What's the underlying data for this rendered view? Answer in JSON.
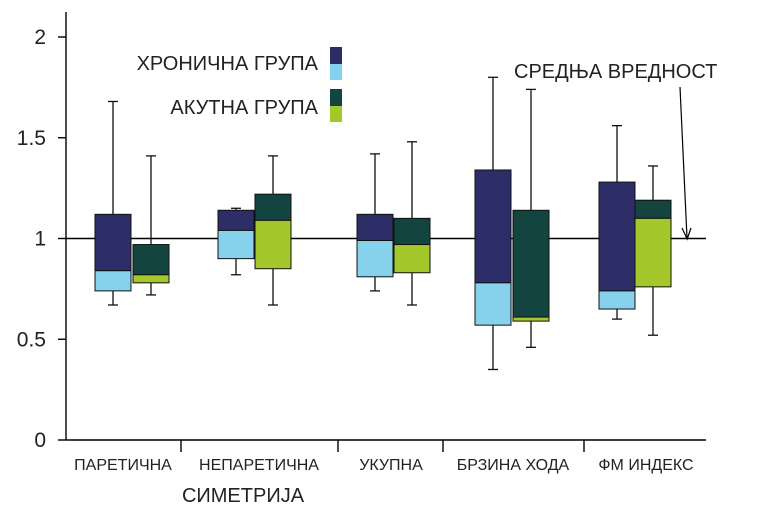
{
  "chart_data": {
    "type": "box",
    "xlabel": "СИМЕТРИЈА",
    "ylabel": "",
    "ylim": [
      0,
      2
    ],
    "yticks": [
      "0",
      "0.5",
      "1",
      "1.5",
      "2"
    ],
    "grid": false,
    "legend_position": "top-left",
    "categories": [
      "ПАРЕТИЧНА",
      "НЕПАРЕТИЧНА",
      "УКУПНА",
      "БРЗИНА ХОДА",
      "ФМ ИНДЕКС"
    ],
    "reference_line": {
      "value": 1,
      "label": "СРЕДЊА ВРЕДНОСТ"
    },
    "series": [
      {
        "name": "ХРОНИЧНА ГРУПА",
        "colors": {
          "upper": "#2d2d68",
          "lower": "#86d2ec"
        },
        "boxes": [
          {
            "min": 0.67,
            "q1": 0.74,
            "median": 0.84,
            "q3": 1.12,
            "max": 1.68
          },
          {
            "min": 0.82,
            "q1": 0.9,
            "median": 1.04,
            "q3": 1.14,
            "max": 1.15
          },
          {
            "min": 0.74,
            "q1": 0.81,
            "median": 0.99,
            "q3": 1.12,
            "max": 1.42
          },
          {
            "min": 0.35,
            "q1": 0.57,
            "median": 0.78,
            "q3": 1.34,
            "max": 1.8
          },
          {
            "min": 0.6,
            "q1": 0.65,
            "median": 0.74,
            "q3": 1.28,
            "max": 1.56
          }
        ]
      },
      {
        "name": "АКУТНА ГРУПА",
        "colors": {
          "upper": "#134440",
          "lower": "#a4c72b"
        },
        "boxes": [
          {
            "min": 0.72,
            "q1": 0.78,
            "median": 0.82,
            "q3": 0.97,
            "max": 1.41
          },
          {
            "min": 0.67,
            "q1": 0.85,
            "median": 1.09,
            "q3": 1.22,
            "max": 1.41
          },
          {
            "min": 0.67,
            "q1": 0.83,
            "median": 0.97,
            "q3": 1.1,
            "max": 1.48
          },
          {
            "min": 0.46,
            "q1": 0.59,
            "median": 0.61,
            "q3": 1.14,
            "max": 1.74
          },
          {
            "min": 0.52,
            "q1": 0.76,
            "median": 1.1,
            "q3": 1.19,
            "max": 1.36
          }
        ]
      }
    ]
  }
}
